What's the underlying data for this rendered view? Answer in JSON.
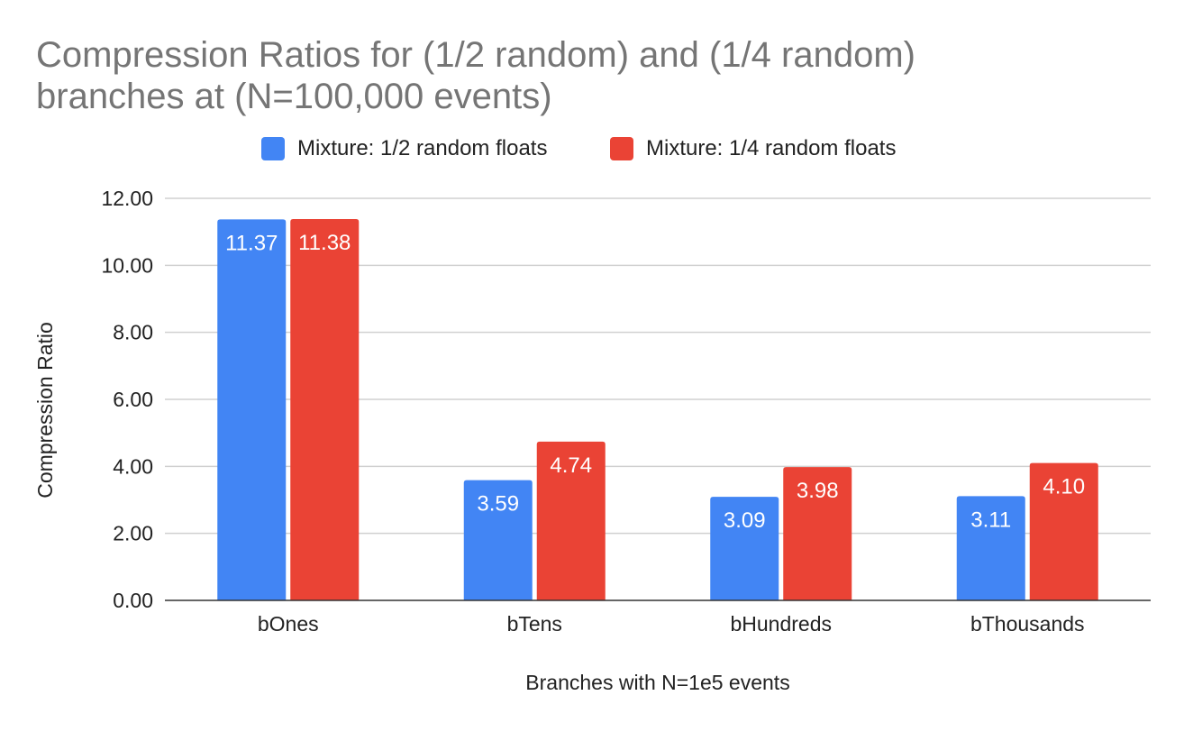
{
  "chart_data": {
    "type": "bar",
    "title": "Compression Ratios for (1/2 random) and (1/4 random) branches at (N=100,000 events)",
    "title_lines": [
      "Compression Ratios for (1/2 random) and (1/4 random)",
      "branches at (N=100,000 events)"
    ],
    "xlabel": "Branches with N=1e5 events",
    "ylabel": "Compression Ratio",
    "categories": [
      "bOnes",
      "bTens",
      "bHundreds",
      "bThousands"
    ],
    "series": [
      {
        "name": "Mixture: 1/2 random floats",
        "color": "#4285f4",
        "values": [
          11.37,
          3.59,
          3.09,
          3.11
        ],
        "labels": [
          "11.37",
          "3.59",
          "3.09",
          "3.11"
        ]
      },
      {
        "name": "Mixture: 1/4 random floats",
        "color": "#ea4335",
        "values": [
          11.38,
          4.74,
          3.98,
          4.1
        ],
        "labels": [
          "11.38",
          "4.74",
          "3.98",
          "4.10"
        ]
      }
    ],
    "ylim": [
      0,
      12
    ],
    "yticks": [
      0,
      2,
      4,
      6,
      8,
      10,
      12
    ],
    "ytick_labels": [
      "0.00",
      "2.00",
      "4.00",
      "6.00",
      "8.00",
      "10.00",
      "12.00"
    ],
    "grid": true,
    "legend_position": "top"
  }
}
